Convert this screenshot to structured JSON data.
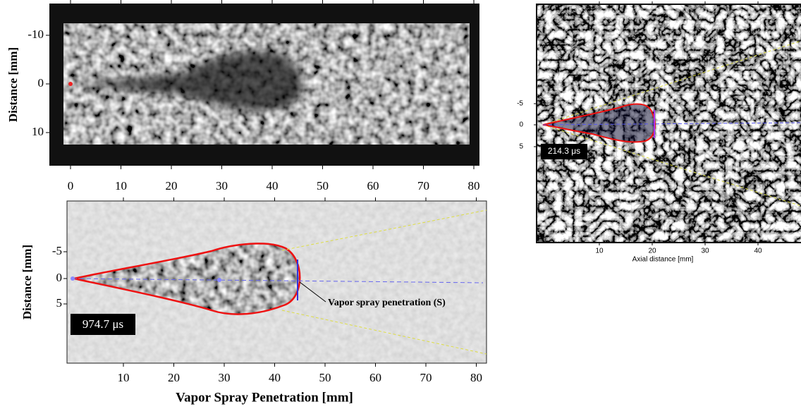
{
  "panels": [
    {
      "y_label": "Distance [mm]",
      "y_ticks": [
        "-10",
        "0",
        "10"
      ],
      "x_ticks": [
        "0",
        "10",
        "20",
        "30",
        "40",
        "50",
        "60",
        "70",
        "80"
      ]
    },
    {
      "y_label": "Distance [mm]",
      "y_ticks": [
        "-5",
        "0",
        "5"
      ],
      "x_ticks": [
        "10",
        "20",
        "30",
        "40",
        "50",
        "60",
        "70",
        "80"
      ],
      "x_label": "Vapor Spray Penetration [mm]",
      "time_label": "974.7 μs",
      "annotation": "Vapor spray penetration (S)"
    },
    {
      "y_ticks": [
        "-5",
        "0",
        "5"
      ],
      "x_ticks": [
        "10",
        "20",
        "30",
        "40"
      ],
      "x_label": "Axial distance [mm]",
      "time_label": "214.3 μs"
    }
  ]
}
